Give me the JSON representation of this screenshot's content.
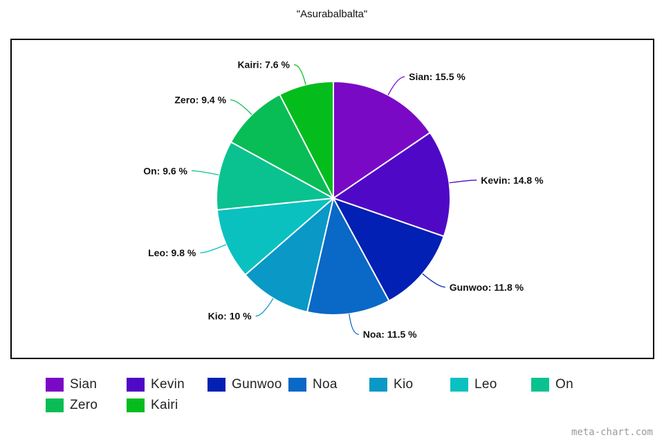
{
  "chart_data": {
    "type": "pie",
    "title": "\"Asurabalbalta\"",
    "slices": [
      {
        "name": "Sian",
        "value": 15.5,
        "label": "Sian: 15.5 %",
        "color": "#7a09c6"
      },
      {
        "name": "Kevin",
        "value": 14.8,
        "label": "Kevin: 14.8 %",
        "color": "#4f09c6"
      },
      {
        "name": "Gunwoo",
        "value": 11.8,
        "label": "Gunwoo: 11.8 %",
        "color": "#0320b4"
      },
      {
        "name": "Noa",
        "value": 11.5,
        "label": "Noa: 11.5 %",
        "color": "#0a68c6"
      },
      {
        "name": "Kio",
        "value": 10.0,
        "label": "Kio: 10 %",
        "color": "#0a98c6"
      },
      {
        "name": "Leo",
        "value": 9.8,
        "label": "Leo: 9.8 %",
        "color": "#0ac1c0"
      },
      {
        "name": "On",
        "value": 9.6,
        "label": "On: 9.6 %",
        "color": "#0ac28f"
      },
      {
        "name": "Zero",
        "value": 9.4,
        "label": "Zero: 9.4 %",
        "color": "#08bd55"
      },
      {
        "name": "Kairi",
        "value": 7.6,
        "label": "Kairi: 7.6 %",
        "color": "#04bd1d"
      }
    ],
    "legend_position": "bottom",
    "start_angle": "12 o'clock, clockwise"
  },
  "watermark": "meta-chart.com"
}
